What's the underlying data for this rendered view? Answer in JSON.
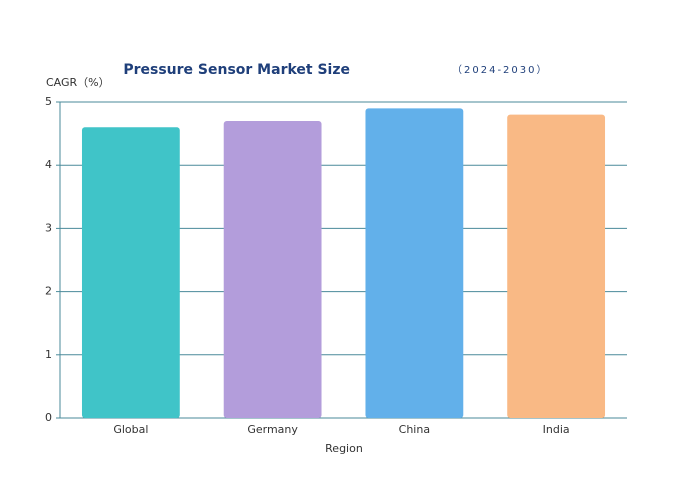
{
  "chart_data": {
    "type": "bar",
    "title": "Pressure Sensor Market Size",
    "subtitle": "（2024-2030）",
    "y_label": "CAGR（%）",
    "x_label": "Region",
    "categories": [
      "Global",
      "Germany",
      "China",
      "India"
    ],
    "values": [
      4.6,
      4.7,
      4.9,
      4.8
    ],
    "colors": [
      "#40c4c8",
      "#b39ddb",
      "#62b0ea",
      "#f9b985"
    ],
    "ylim": [
      0,
      5
    ],
    "yticks": [
      0,
      1,
      2,
      3,
      4,
      5
    ],
    "grid": true
  }
}
